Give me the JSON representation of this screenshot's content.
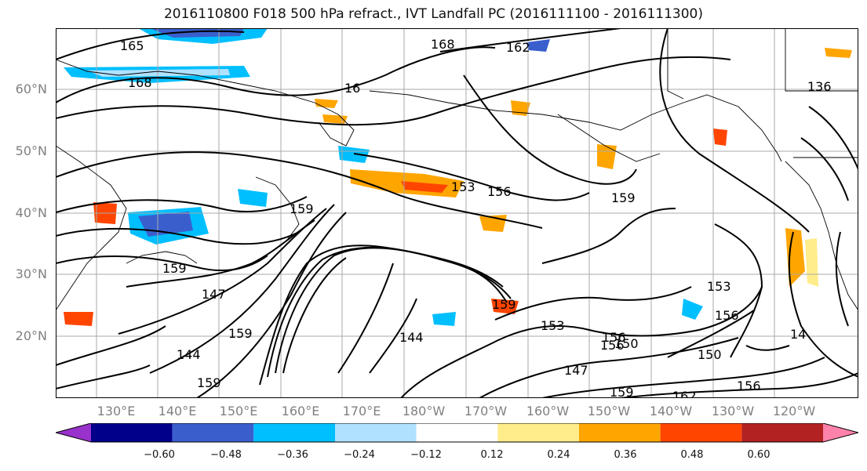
{
  "title": "2016110800 F018 500 hPa refract., IVT Landfall PC (2016111100 - 2016111300)",
  "lat_labels": [
    "60°N",
    "50°N",
    "40°N",
    "30°N",
    "20°N"
  ],
  "lon_labels": [
    "130°E",
    "140°E",
    "150°E",
    "160°E",
    "170°E",
    "180°W",
    "170°W",
    "160°W",
    "150°W",
    "140°W",
    "130°W",
    "120°W"
  ],
  "contour_labels": [
    "165",
    "168",
    "168",
    "162",
    "16",
    "136",
    "153",
    "156",
    "159",
    "159",
    "159",
    "159",
    "147",
    "153",
    "156",
    "156",
    "150",
    "150",
    "147",
    "159",
    "162",
    "156",
    "159",
    "144",
    "144",
    "159",
    "153",
    "156",
    "14"
  ],
  "colorbar": {
    "ticks": [
      "−0.60",
      "−0.48",
      "−0.36",
      "−0.24",
      "−0.12",
      "0.12",
      "0.24",
      "0.36",
      "0.48",
      "0.60"
    ],
    "colors": [
      "#9932cc",
      "#00008b",
      "#3a5fcd",
      "#00bfff",
      "#b0e2ff",
      "#ffffff",
      "#ffec8b",
      "#ffa500",
      "#ff4500",
      "#b22222",
      "#ff82ab"
    ]
  }
}
